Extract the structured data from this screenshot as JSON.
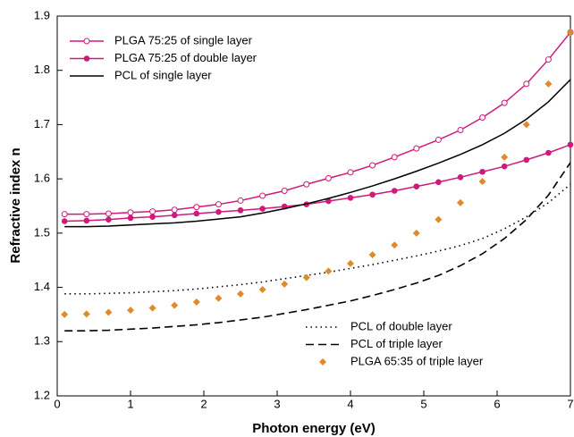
{
  "chart_data": {
    "type": "line",
    "xlabel": "Photon energy (eV)",
    "ylabel": "Refractive index n",
    "xlim": [
      0,
      7
    ],
    "ylim": [
      1.2,
      1.9
    ],
    "xticks": [
      0,
      1,
      2,
      3,
      4,
      5,
      6,
      7
    ],
    "yticks": [
      1.2,
      1.3,
      1.4,
      1.5,
      1.6,
      1.7,
      1.8,
      1.9
    ],
    "x": [
      0.1,
      0.4,
      0.7,
      1.0,
      1.3,
      1.6,
      1.9,
      2.2,
      2.5,
      2.8,
      3.1,
      3.4,
      3.7,
      4.0,
      4.3,
      4.6,
      4.9,
      5.2,
      5.5,
      5.8,
      6.1,
      6.4,
      6.7,
      7.0
    ],
    "series": [
      {
        "name": "PLGA 75:25 of single layer",
        "color": "#d0197a",
        "marker": "open-circle",
        "line": "solid",
        "legend": "upper left",
        "values": [
          1.535,
          1.535,
          1.536,
          1.538,
          1.54,
          1.543,
          1.548,
          1.553,
          1.56,
          1.569,
          1.578,
          1.59,
          1.601,
          1.612,
          1.625,
          1.64,
          1.656,
          1.672,
          1.69,
          1.713,
          1.74,
          1.775,
          1.82,
          1.87
        ]
      },
      {
        "name": "PLGA 75:25 of double layer",
        "color": "#d0197a",
        "marker": "filled-circle",
        "line": "solid",
        "legend": "upper left",
        "values": [
          1.522,
          1.523,
          1.525,
          1.528,
          1.53,
          1.533,
          1.536,
          1.539,
          1.542,
          1.545,
          1.549,
          1.553,
          1.559,
          1.565,
          1.571,
          1.578,
          1.586,
          1.594,
          1.603,
          1.613,
          1.623,
          1.635,
          1.648,
          1.663
        ]
      },
      {
        "name": "PCL of single layer",
        "color": "#000000",
        "marker": "none",
        "line": "solid",
        "legend": "upper left",
        "values": [
          1.512,
          1.512,
          1.513,
          1.515,
          1.517,
          1.519,
          1.522,
          1.526,
          1.53,
          1.537,
          1.545,
          1.554,
          1.564,
          1.575,
          1.587,
          1.6,
          1.614,
          1.629,
          1.645,
          1.663,
          1.684,
          1.71,
          1.742,
          1.783
        ]
      },
      {
        "name": "PCL of double layer",
        "color": "#000000",
        "marker": "none",
        "line": "dotted",
        "legend": "lower right",
        "values": [
          1.388,
          1.388,
          1.389,
          1.39,
          1.392,
          1.394,
          1.397,
          1.401,
          1.405,
          1.41,
          1.416,
          1.422,
          1.428,
          1.435,
          1.442,
          1.45,
          1.458,
          1.467,
          1.477,
          1.49,
          1.508,
          1.53,
          1.556,
          1.59
        ]
      },
      {
        "name": "PCL of  triple layer",
        "color": "#000000",
        "marker": "none",
        "line": "dashed",
        "legend": "lower right",
        "values": [
          1.32,
          1.32,
          1.321,
          1.323,
          1.325,
          1.328,
          1.331,
          1.335,
          1.34,
          1.345,
          1.352,
          1.359,
          1.367,
          1.375,
          1.385,
          1.396,
          1.408,
          1.422,
          1.44,
          1.462,
          1.49,
          1.525,
          1.57,
          1.63
        ]
      },
      {
        "name": "PLGA 65:35 of triple layer",
        "color": "#e08a2c",
        "marker": "diamond",
        "line": "none",
        "legend": "lower right",
        "values": [
          1.35,
          1.351,
          1.354,
          1.358,
          1.362,
          1.367,
          1.373,
          1.38,
          1.388,
          1.396,
          1.406,
          1.418,
          1.43,
          1.444,
          1.46,
          1.478,
          1.5,
          1.525,
          1.556,
          1.595,
          1.64,
          1.7,
          1.775,
          1.87
        ]
      }
    ]
  }
}
